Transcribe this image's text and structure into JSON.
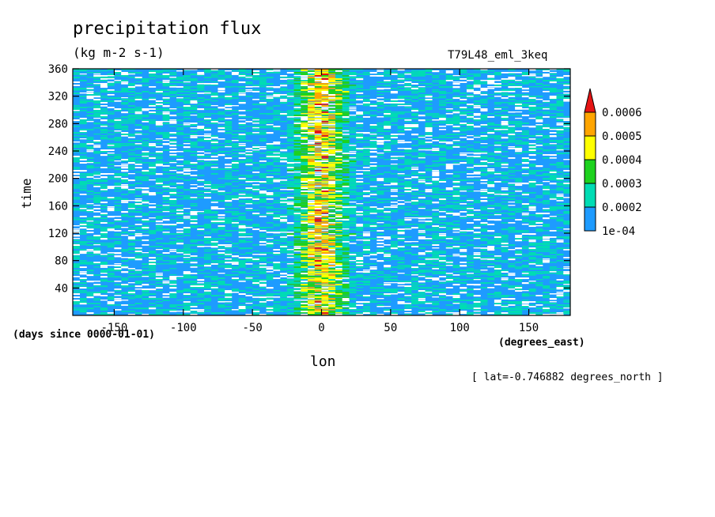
{
  "chart_data": {
    "type": "heatmap",
    "title": "precipitation flux",
    "units": "(kg m-2 s-1)",
    "run_label": "T79L48_eml_3keq",
    "xlabel": "lon",
    "x_units_note": "(degrees_east)",
    "ylabel": "time",
    "y_units_note": "(days since 0000-01-01)",
    "subset_note": "[ lat=-0.746882 degrees_north ]",
    "xlim": [
      -180,
      180
    ],
    "ylim": [
      0,
      360
    ],
    "x_ticks": [
      -150,
      -100,
      -50,
      0,
      50,
      100,
      150
    ],
    "y_ticks": [
      40,
      80,
      120,
      160,
      200,
      240,
      280,
      320,
      360
    ],
    "colorbar": {
      "levels": [
        "1e-04",
        "0.0002",
        "0.0003",
        "0.0004",
        "0.0005",
        "0.0006"
      ],
      "colors": [
        "#1e9bff",
        "#00dcb4",
        "#1ed21e",
        "#ffff00",
        "#ffa500",
        "#e61414"
      ],
      "extend": "max"
    },
    "pattern": {
      "description_values": "Hovmoller precipitation; enhanced band centered near lon 0 (approx -25 to 25)",
      "band_center_lon": 0,
      "band_halfwidth_lon": 25,
      "background_level": "1e-04 to 0.0003",
      "band_peak_level": "0.0006"
    }
  }
}
